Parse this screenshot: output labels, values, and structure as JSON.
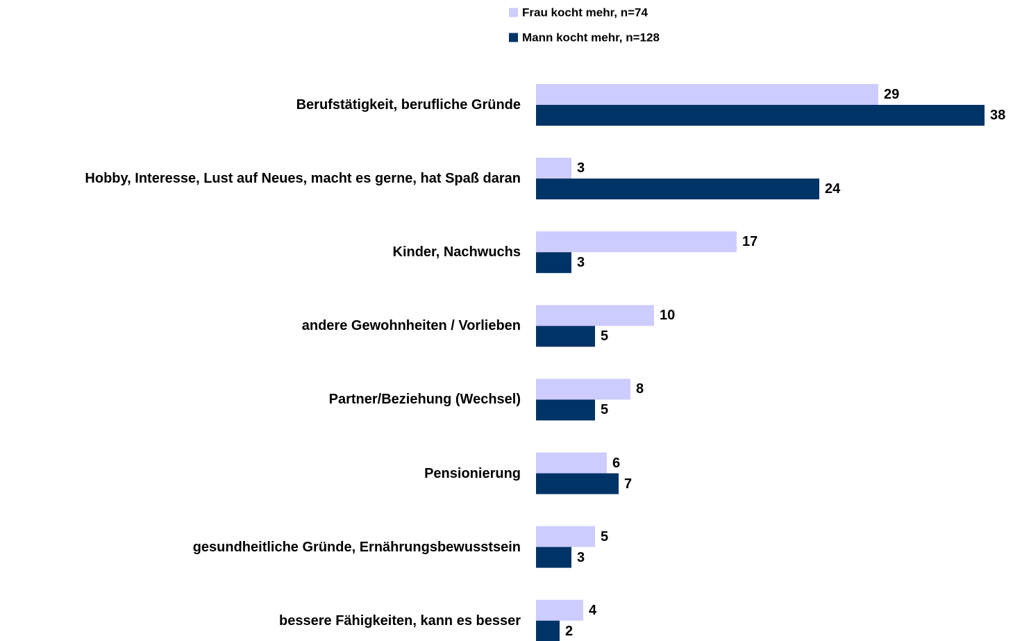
{
  "chart_data": {
    "type": "bar",
    "orientation": "horizontal",
    "categories": [
      "Berufstätigkeit, berufliche Gründe",
      "Hobby, Interesse, Lust auf Neues, macht es gerne, hat Spaß daran",
      "Kinder, Nachwuchs",
      "andere Gewohnheiten / Vorlieben",
      "Partner/Beziehung (Wechsel)",
      "Pensionierung",
      "gesundheitliche Gründe, Ernährungsbewusstsein",
      "bessere Fähigkeiten, kann es besser"
    ],
    "series": [
      {
        "name": "Frau kocht mehr, n=74",
        "color": "#ccccff",
        "values": [
          29,
          3,
          17,
          10,
          8,
          6,
          5,
          4
        ]
      },
      {
        "name": "Mann kocht mehr, n=128",
        "color": "#003366",
        "values": [
          38,
          24,
          3,
          5,
          5,
          7,
          3,
          2
        ]
      }
    ],
    "xlim": [
      0,
      40
    ]
  }
}
